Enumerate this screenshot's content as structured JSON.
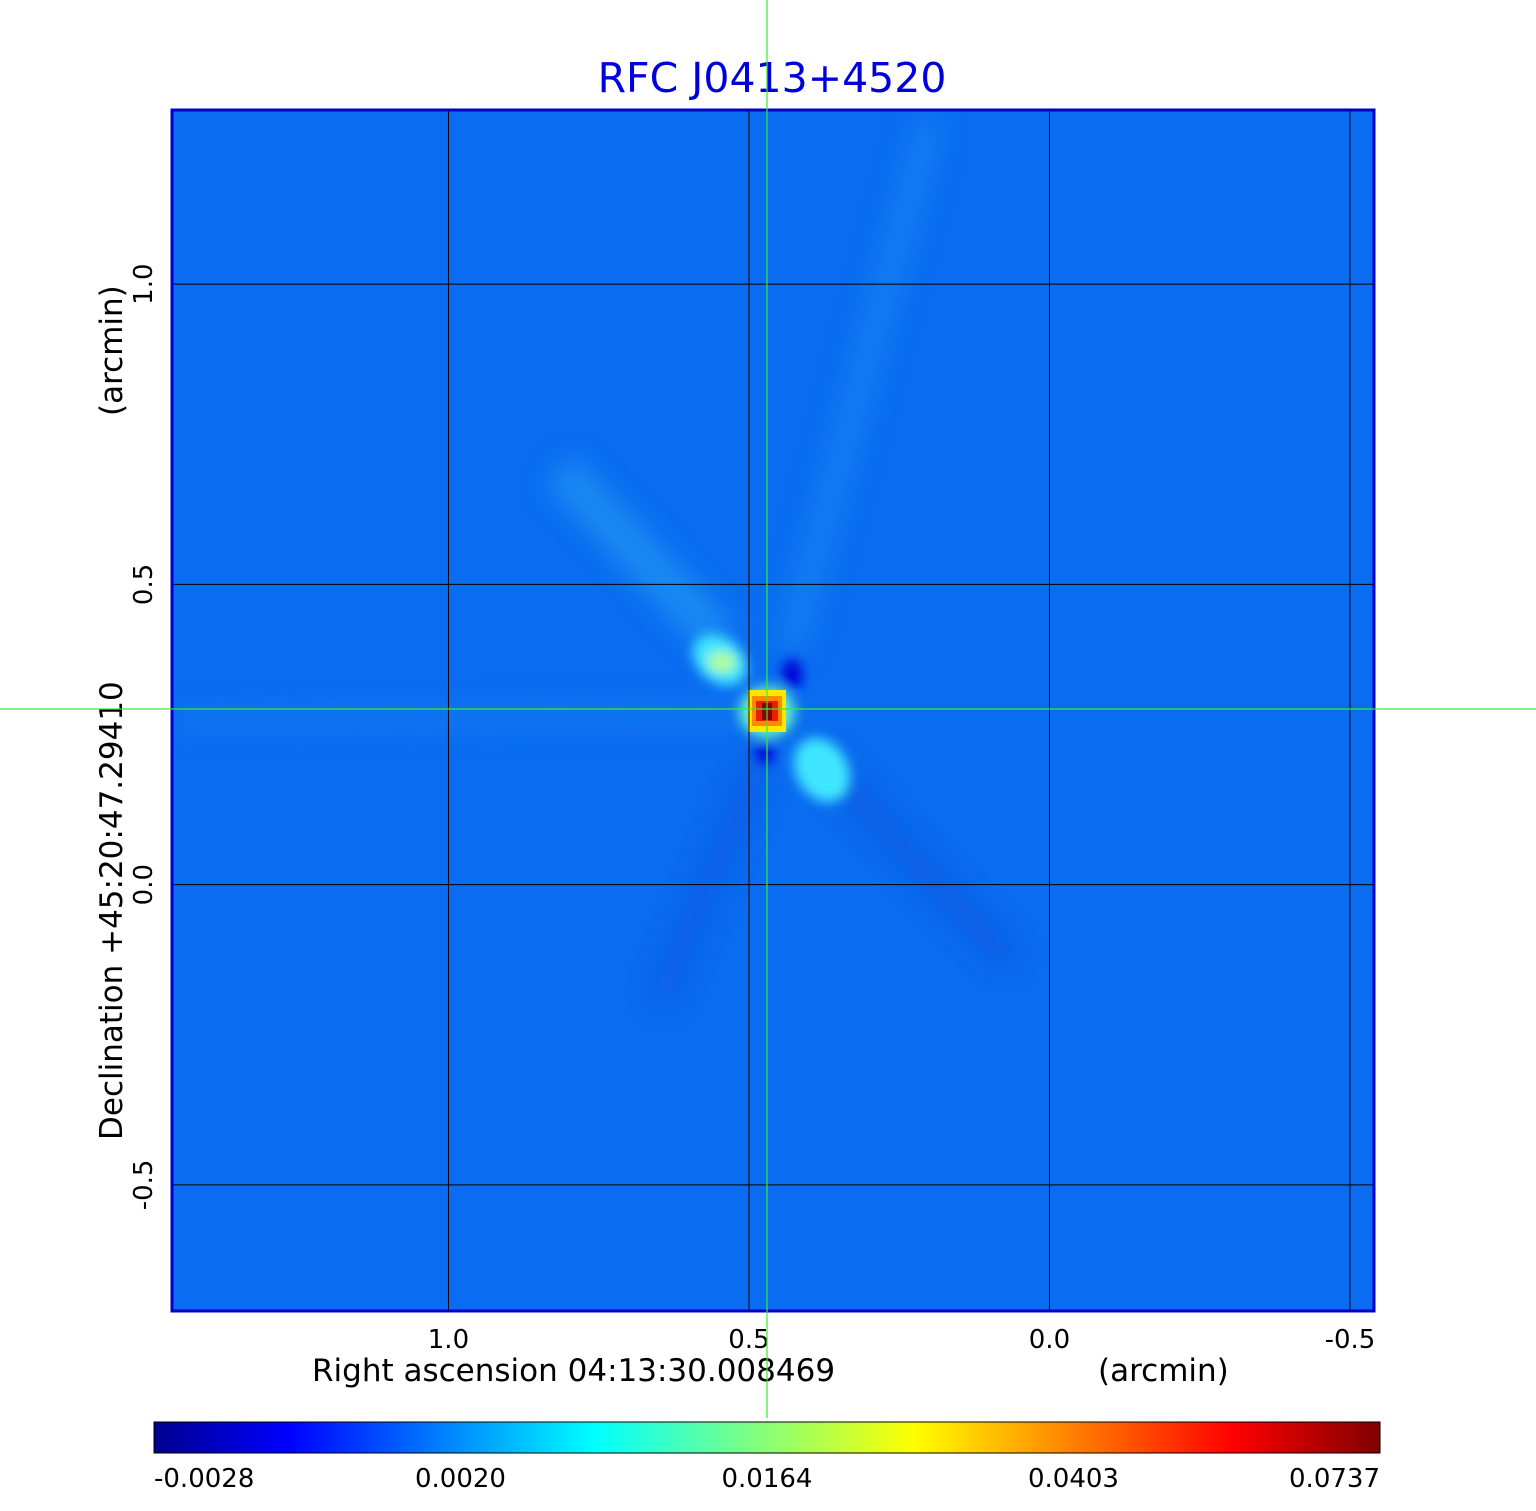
{
  "chart_data": {
    "type": "heatmap",
    "title": "RFC J0413+4520",
    "xlabel": "Right ascension  04:13:30.008469",
    "xlabel_unit": "(arcmin)",
    "ylabel": "Declination  +45:20:47.29410",
    "ylabel_unit": "(arcmin)",
    "x_ticks": [
      "1.0",
      "0.5",
      "0.0",
      "-0.5"
    ],
    "x_tick_values": [
      1.0,
      0.5,
      0.0,
      -0.5
    ],
    "y_ticks": [
      "1.0",
      "0.5",
      "0.0",
      "-0.5"
    ],
    "y_tick_values": [
      1.0,
      0.5,
      0.0,
      -0.5
    ],
    "xlim": [
      1.46,
      -0.54
    ],
    "ylim": [
      -0.71,
      1.29
    ],
    "grid": true,
    "crosshair": {
      "x": 0.47,
      "y": 0.29
    },
    "colormap": "jet",
    "colorbar": {
      "ticks": [
        "-0.0028",
        "0.0020",
        "0.0164",
        "0.0403",
        "0.0737"
      ],
      "placement": "bottom"
    },
    "features": [
      {
        "name": "core",
        "x": 0.47,
        "y": 0.285,
        "value": 0.0737
      },
      {
        "name": "NW component",
        "x": 0.56,
        "y": 0.37,
        "value": 0.016
      },
      {
        "name": "SE component",
        "x": 0.37,
        "y": 0.18,
        "value": 0.012
      }
    ]
  },
  "colors": {
    "title": "#0000dd",
    "frame": "#0000cc",
    "background_map": "#0a6cf0",
    "grid": "#000000",
    "crosshair": "#33ee33"
  }
}
